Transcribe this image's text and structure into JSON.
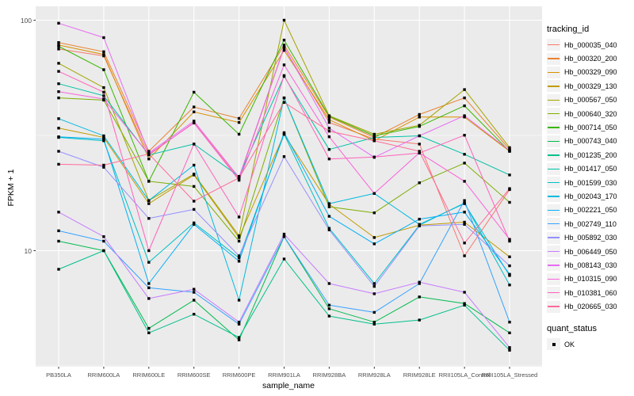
{
  "chart_data": {
    "type": "line",
    "title": "",
    "xlabel": "sample_name",
    "ylabel": "FPKM + 1",
    "y_scale": "log10",
    "ylim": [
      3.0,
      114.0
    ],
    "y_major_ticks": [
      10,
      100
    ],
    "y_tick_labels": [
      "10",
      "100"
    ],
    "y_minor_ticks": [
      3.1623,
      31.6228
    ],
    "grid": true,
    "legend_position": "right",
    "marker": "black-square",
    "categories": [
      "PB350LA",
      "RRIM600LA",
      "RRIM600LE",
      "RRIM600SE",
      "RRIM600PE",
      "RRIM901LA",
      "RRIM928BA",
      "RRIM928LA",
      "RRIM928LE",
      "RRII105LA_Control",
      "RRII105LA_Stressed"
    ],
    "series": [
      {
        "name": "Hb_000035_040",
        "color": "#F8766D",
        "values": [
          75,
          70,
          26,
          36,
          20.5,
          76,
          36,
          30.5,
          29,
          9.5,
          18.4
        ]
      },
      {
        "name": "Hb_000320_200",
        "color": "#EA8331",
        "values": [
          80,
          73,
          27,
          42,
          37.5,
          78,
          38,
          31,
          39,
          46,
          27.5
        ]
      },
      {
        "name": "Hb_000329_090",
        "color": "#D89000",
        "values": [
          78,
          71,
          25,
          40,
          36,
          74,
          37,
          30,
          38,
          38,
          27
        ]
      },
      {
        "name": "Hb_000329_130",
        "color": "#C09B00",
        "values": [
          34,
          31,
          16,
          21.3,
          11.4,
          32,
          15.9,
          11.4,
          12.9,
          13.3,
          9.4
        ]
      },
      {
        "name": "Hb_000567_050",
        "color": "#A3A500",
        "values": [
          65,
          51,
          16.5,
          21.5,
          11.6,
          100,
          38.5,
          32,
          35,
          50,
          28
        ]
      },
      {
        "name": "Hb_000640_320",
        "color": "#7CAE00",
        "values": [
          46,
          45,
          20,
          19,
          11,
          46,
          15.5,
          14.6,
          19.7,
          24,
          16.2
        ]
      },
      {
        "name": "Hb_000714_050",
        "color": "#39B600",
        "values": [
          77,
          61,
          20,
          48.7,
          32,
          82,
          38.3,
          31.5,
          34.6,
          42.5,
          27
        ]
      },
      {
        "name": "Hb_000743_040",
        "color": "#00BB4E",
        "values": [
          11,
          10,
          4.6,
          6.1,
          4.1,
          11.5,
          5.6,
          4.9,
          6.3,
          5.9,
          4.4
        ]
      },
      {
        "name": "Hb_001235_200",
        "color": "#00C08B",
        "values": [
          8.3,
          10,
          4.4,
          5.3,
          4.2,
          9.2,
          5.2,
          4.8,
          5.0,
          5.8,
          3.7
        ]
      },
      {
        "name": "Hb_001417_050",
        "color": "#00C1A7",
        "values": [
          53,
          47,
          26,
          29,
          21,
          57,
          27.5,
          31,
          31.5,
          26.2,
          21.3
        ]
      },
      {
        "name": "Hb_001599_030",
        "color": "#00BFC4",
        "values": [
          31,
          30,
          8.9,
          13.2,
          9.3,
          32,
          12.5,
          7.2,
          12.9,
          16.1,
          7.1
        ]
      },
      {
        "name": "Hb_002043_170",
        "color": "#00BAE0",
        "values": [
          37.4,
          31.5,
          16.5,
          23.5,
          6.1,
          46,
          16,
          17.7,
          13,
          16,
          7.8
        ]
      },
      {
        "name": "Hb_002221_050",
        "color": "#00B0F6",
        "values": [
          31.2,
          30.5,
          7.2,
          13,
          9,
          32.5,
          14.1,
          10.7,
          13.7,
          14.7,
          7.9
        ]
      },
      {
        "name": "Hb_002749_110",
        "color": "#35A2FF",
        "values": [
          12.2,
          11,
          6.9,
          6.6,
          4.8,
          11.5,
          5.8,
          5.4,
          7.2,
          16.5,
          4.9
        ]
      },
      {
        "name": "Hb_005892_030",
        "color": "#9590FF",
        "values": [
          27,
          23,
          13.8,
          15.1,
          9.5,
          25.6,
          12.3,
          7.0,
          12.8,
          13,
          8.6
        ]
      },
      {
        "name": "Hb_006449_050",
        "color": "#C77CFF",
        "values": [
          14.7,
          11.5,
          6.2,
          6.8,
          4.9,
          11.8,
          7.2,
          6.5,
          7.3,
          6.6,
          3.8
        ]
      },
      {
        "name": "Hb_008143_030",
        "color": "#E76BF3",
        "values": [
          97,
          84,
          26.5,
          36.5,
          20.8,
          76.5,
          34,
          25.4,
          31.5,
          38.5,
          27.2
        ]
      },
      {
        "name": "Hb_010315_090",
        "color": "#FA62DB",
        "values": [
          49,
          45.5,
          26.2,
          35.8,
          20.2,
          64,
          31.2,
          17.7,
          26.6,
          20,
          11.2
        ]
      },
      {
        "name": "Hb_010381_060",
        "color": "#FF62BC",
        "values": [
          60,
          48.7,
          10,
          29,
          14,
          57.5,
          25,
          25.5,
          26.5,
          31.7,
          11
        ]
      },
      {
        "name": "Hb_020665_030",
        "color": "#FF6A98",
        "values": [
          23.7,
          23.5,
          26.3,
          16.4,
          20.7,
          44,
          33,
          30,
          27,
          10.8,
          18.6
        ]
      }
    ]
  },
  "legend": {
    "tracking_title": "tracking_id",
    "quant_title": "quant_status",
    "quant_items": [
      {
        "label": "OK",
        "marker": "black-square"
      }
    ]
  },
  "colors": {
    "panel_bg": "#EBEBEB",
    "grid": "#FFFFFF",
    "tick_label": "#4D4D4D",
    "axis_title": "#000000",
    "point": "#000000",
    "legend_key_bg": "#F2F2F2"
  }
}
